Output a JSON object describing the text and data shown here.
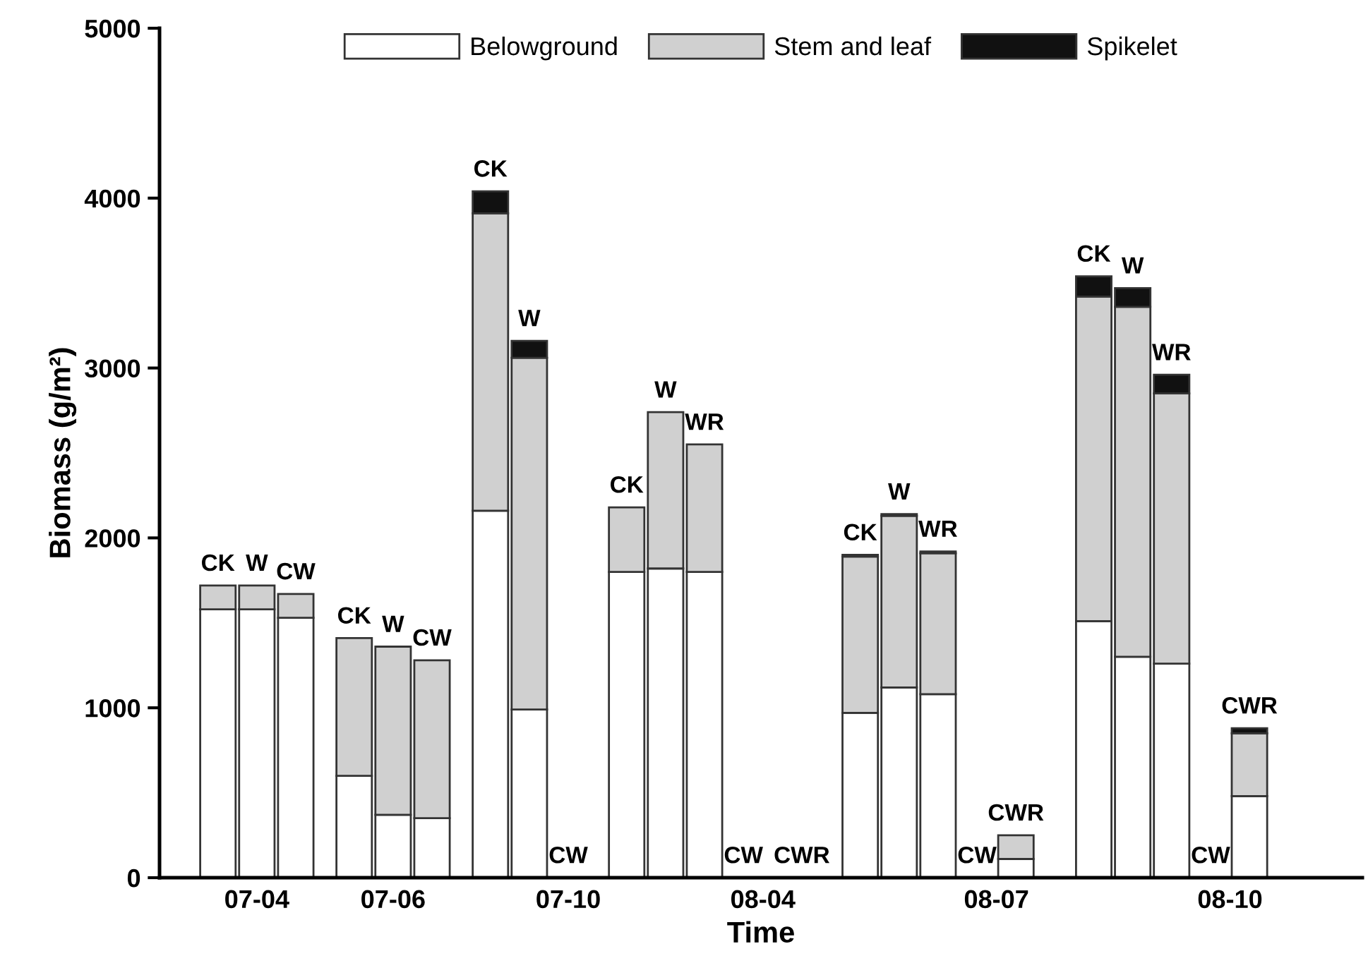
{
  "chart_data": {
    "type": "bar",
    "stacked": true,
    "xlabel": "Time",
    "ylabel": "Biomass (g/m²)",
    "categories": [
      null,
      null,
      "07-04",
      null,
      null,
      null,
      null,
      null,
      null,
      "07-06",
      null,
      null,
      null,
      null,
      null,
      null,
      null,
      null,
      "07-10",
      null,
      null,
      null,
      null,
      null,
      null,
      null,
      null,
      null,
      "08-04",
      null,
      null,
      null,
      null,
      null,
      null,
      null,
      null,
      null,
      null,
      null,
      "08-07",
      null,
      null,
      null,
      null,
      null,
      null,
      null,
      null,
      null,
      null,
      null,
      "08-10",
      null
    ],
    "series": [
      {
        "name": "Belowground",
        "color": "#ffffff",
        "values": [
          1580,
          null,
          1580,
          null,
          1530,
          null,
          null,
          600,
          null,
          370,
          null,
          350,
          null,
          null,
          2160,
          null,
          990,
          null,
          0,
          null,
          null,
          1800,
          null,
          1820,
          null,
          1800,
          null,
          0,
          null,
          null,
          0,
          null,
          null,
          970,
          null,
          1120,
          null,
          1080,
          null,
          0,
          null,
          110,
          null,
          null,
          null,
          1510,
          null,
          1300,
          null,
          1260,
          null,
          0,
          null,
          480
        ]
      },
      {
        "name": "Stem and leaf",
        "color": "#d0d0d0",
        "values": [
          140,
          null,
          140,
          null,
          140,
          null,
          null,
          810,
          null,
          990,
          null,
          930,
          null,
          null,
          1750,
          null,
          2070,
          null,
          0,
          null,
          null,
          380,
          null,
          920,
          null,
          750,
          null,
          0,
          null,
          null,
          0,
          null,
          null,
          920,
          null,
          1010,
          null,
          830,
          null,
          0,
          null,
          140,
          null,
          null,
          null,
          1910,
          null,
          2060,
          null,
          1590,
          null,
          0,
          null,
          370
        ]
      },
      {
        "name": "Spikelet",
        "color": "#111111",
        "values": [
          0,
          null,
          0,
          null,
          0,
          null,
          null,
          0,
          null,
          0,
          null,
          0,
          null,
          null,
          130,
          null,
          100,
          null,
          0,
          null,
          null,
          0,
          null,
          0,
          null,
          0,
          null,
          0,
          null,
          null,
          0,
          null,
          null,
          10,
          null,
          10,
          null,
          10,
          null,
          0,
          null,
          0,
          null,
          null,
          null,
          120,
          null,
          110,
          null,
          110,
          null,
          0,
          null,
          30
        ],
        "value_labels": [
          "CK",
          null,
          "W",
          null,
          "CW",
          null,
          null,
          "CK",
          null,
          "W",
          null,
          "CW",
          null,
          null,
          "CK",
          null,
          "W",
          null,
          "CW",
          null,
          null,
          "CK",
          null,
          "W",
          null,
          "WR",
          null,
          "CW",
          null,
          null,
          "CWR",
          null,
          null,
          "CK",
          null,
          "W",
          null,
          "WR",
          null,
          "CW",
          null,
          "CWR",
          null,
          null,
          null,
          "CK",
          null,
          "W",
          null,
          "WR",
          null,
          "CW",
          null,
          "CWR"
        ]
      }
    ],
    "ylim": [
      0,
      5000
    ],
    "yticks": [
      0,
      1000,
      2000,
      3000,
      4000,
      5000
    ],
    "grid": false,
    "legend": "top"
  }
}
